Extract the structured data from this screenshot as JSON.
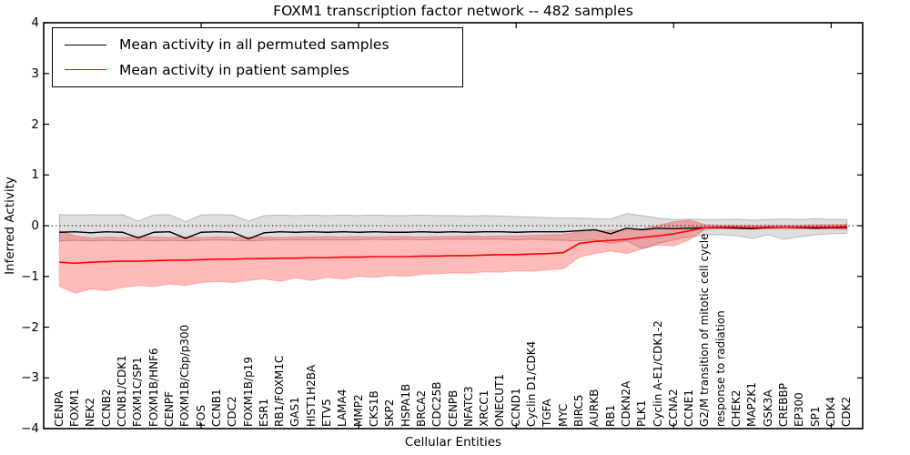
{
  "chart_data": {
    "type": "line",
    "title": "FOXM1 transcription factor network -- 482 samples",
    "xlabel": "Cellular Entities",
    "ylabel": "Inferred Activity",
    "ylim": [
      -4,
      4
    ],
    "y_ticks": [
      4,
      3,
      2,
      1,
      0,
      -1,
      -2,
      -3,
      -4
    ],
    "x_tick_positions": [
      10,
      20,
      30,
      40,
      50
    ],
    "grid": false,
    "zero_line": "dotted",
    "legend_position": "upper left",
    "categories": [
      "CENPA",
      "FOXM1",
      "NEK2",
      "CCNB2",
      "CCNB1/CDK1",
      "FOXM1C/SP1",
      "FOXM1B/HNF6",
      "CENPF",
      "FOXM1B/Cbp/p300",
      "FOS",
      "CCNB1",
      "CDC2",
      "FOXM1B/p19",
      "ESR1",
      "RB1/FOXM1C",
      "GAS1",
      "HIST1H2BA",
      "ETV5",
      "LAMA4",
      "MMP2",
      "CKS1B",
      "SKP2",
      "HSPA1B",
      "BRCA2",
      "CDC25B",
      "CENPB",
      "NFATC3",
      "XRCC1",
      "ONECUT1",
      "CCND1",
      "Cyclin D1/CDK4",
      "TGFA",
      "MYC",
      "BIRC5",
      "AURKB",
      "RB1",
      "CDKN2A",
      "PLK1",
      "Cyclin A-E1/CDK1-2",
      "CCNA2",
      "CCNE1",
      "G2/M transition of mitotic cell cycle",
      "response to radiation",
      "CHEK2",
      "MAP2K1",
      "GSK3A",
      "CREBBP",
      "EP300",
      "SP1",
      "CDK4",
      "CDK2"
    ],
    "series": [
      {
        "name": "Mean activity in all permuted samples",
        "color": "#000000",
        "band_color": "#000000",
        "band_opacity": 0.13,
        "line_width": 1.4,
        "values": [
          -0.13,
          -0.12,
          -0.14,
          -0.12,
          -0.13,
          -0.24,
          -0.13,
          -0.12,
          -0.25,
          -0.13,
          -0.12,
          -0.13,
          -0.26,
          -0.14,
          -0.12,
          -0.13,
          -0.12,
          -0.13,
          -0.12,
          -0.13,
          -0.12,
          -0.13,
          -0.13,
          -0.12,
          -0.13,
          -0.12,
          -0.13,
          -0.12,
          -0.12,
          -0.13,
          -0.12,
          -0.12,
          -0.12,
          -0.1,
          -0.08,
          -0.16,
          -0.05,
          -0.08,
          -0.05,
          -0.06,
          -0.05,
          -0.04,
          -0.04,
          -0.05,
          -0.06,
          -0.04,
          -0.03,
          -0.04,
          -0.05,
          -0.04,
          -0.04
        ],
        "band_upper": [
          0.22,
          0.21,
          0.22,
          0.21,
          0.22,
          0.09,
          0.21,
          0.22,
          0.08,
          0.21,
          0.22,
          0.21,
          0.09,
          0.2,
          0.21,
          0.2,
          0.21,
          0.2,
          0.21,
          0.2,
          0.21,
          0.2,
          0.2,
          0.21,
          0.2,
          0.2,
          0.19,
          0.2,
          0.19,
          0.18,
          0.17,
          0.16,
          0.15,
          0.15,
          0.14,
          0.13,
          0.24,
          0.2,
          0.15,
          0.12,
          0.13,
          0.12,
          0.12,
          0.13,
          0.11,
          0.12,
          0.13,
          0.12,
          0.14,
          0.12,
          0.12
        ],
        "band_lower": [
          -0.3,
          -0.29,
          -0.3,
          -0.29,
          -0.3,
          -0.29,
          -0.3,
          -0.29,
          -0.3,
          -0.29,
          -0.28,
          -0.29,
          -0.3,
          -0.29,
          -0.28,
          -0.28,
          -0.28,
          -0.28,
          -0.28,
          -0.28,
          -0.27,
          -0.28,
          -0.27,
          -0.28,
          -0.27,
          -0.27,
          -0.27,
          -0.27,
          -0.27,
          -0.28,
          -0.27,
          -0.28,
          -0.29,
          -0.3,
          -0.28,
          -0.35,
          -0.3,
          -0.45,
          -0.35,
          -0.28,
          -0.22,
          -0.18,
          -0.18,
          -0.2,
          -0.25,
          -0.18,
          -0.27,
          -0.22,
          -0.18,
          -0.16,
          -0.15
        ]
      },
      {
        "name": "Mean activity in patient samples",
        "color": "#ff0000",
        "band_color": "#ff0000",
        "band_opacity": 0.27,
        "line_width": 1.6,
        "values": [
          -0.72,
          -0.74,
          -0.72,
          -0.71,
          -0.7,
          -0.7,
          -0.69,
          -0.68,
          -0.68,
          -0.67,
          -0.66,
          -0.66,
          -0.65,
          -0.65,
          -0.64,
          -0.64,
          -0.63,
          -0.63,
          -0.62,
          -0.62,
          -0.61,
          -0.61,
          -0.61,
          -0.6,
          -0.6,
          -0.59,
          -0.59,
          -0.58,
          -0.57,
          -0.57,
          -0.56,
          -0.55,
          -0.53,
          -0.35,
          -0.31,
          -0.29,
          -0.27,
          -0.23,
          -0.2,
          -0.16,
          -0.1,
          -0.04,
          -0.03,
          -0.03,
          -0.04,
          -0.03,
          -0.03,
          -0.03,
          -0.03,
          -0.03,
          -0.02
        ],
        "band_upper": [
          -0.1,
          -0.2,
          -0.24,
          -0.22,
          -0.23,
          -0.21,
          -0.22,
          -0.23,
          -0.22,
          -0.23,
          -0.22,
          -0.23,
          -0.22,
          -0.22,
          -0.23,
          -0.22,
          -0.22,
          -0.21,
          -0.22,
          -0.21,
          -0.22,
          -0.21,
          -0.21,
          -0.22,
          -0.21,
          -0.21,
          -0.2,
          -0.21,
          -0.2,
          -0.2,
          -0.19,
          -0.18,
          -0.17,
          -0.12,
          -0.1,
          -0.09,
          -0.08,
          -0.06,
          0.0,
          0.08,
          0.11,
          0.02,
          0.01,
          0.01,
          0.01,
          0.01,
          0.01,
          0.01,
          0.02,
          0.02,
          0.03
        ],
        "band_lower": [
          -1.2,
          -1.33,
          -1.25,
          -1.28,
          -1.22,
          -1.18,
          -1.2,
          -1.15,
          -1.18,
          -1.12,
          -1.1,
          -1.12,
          -1.08,
          -1.05,
          -1.1,
          -1.03,
          -1.08,
          -1.02,
          -1.05,
          -1.0,
          -1.02,
          -0.98,
          -1.0,
          -0.96,
          -0.95,
          -0.93,
          -0.94,
          -0.91,
          -0.92,
          -0.89,
          -0.9,
          -0.87,
          -0.85,
          -0.62,
          -0.55,
          -0.5,
          -0.55,
          -0.46,
          -0.38,
          -0.4,
          -0.28,
          -0.07,
          -0.06,
          -0.06,
          -0.06,
          -0.06,
          -0.06,
          -0.06,
          -0.06,
          -0.07,
          -0.08
        ]
      }
    ]
  }
}
